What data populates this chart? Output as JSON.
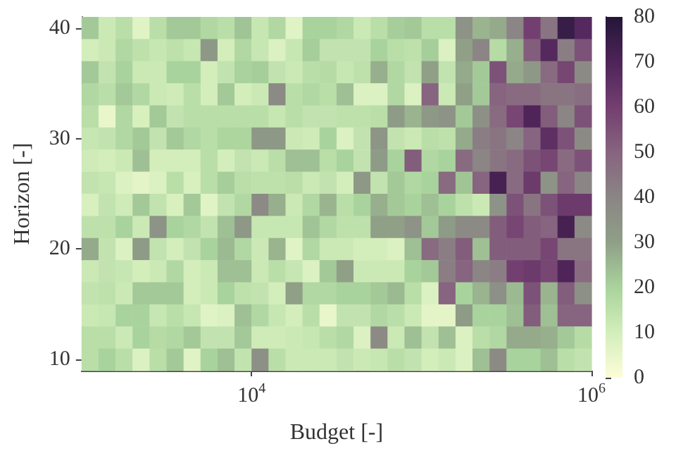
{
  "chart_data": {
    "type": "heatmap",
    "xlabel": "Budget [-]",
    "ylabel": "Horizon [-]",
    "log": "x",
    "xlim": [
      1000,
      1000000
    ],
    "xticks": [
      {
        "value": 10000,
        "label": "10$^{4}$"
      },
      {
        "value": 1000000,
        "label": "10$^{6}$"
      }
    ],
    "clim": [
      0,
      80
    ],
    "cticks": [
      0,
      10,
      20,
      30,
      40,
      50,
      60,
      70,
      80
    ],
    "x": [
      1122,
      1413,
      1778,
      2239,
      2818,
      3548,
      4467,
      5623,
      7079,
      8913,
      11220,
      14125,
      17783,
      22387,
      28184,
      35481,
      44668,
      56234,
      70795,
      89125,
      112202,
      141254,
      177828,
      223872,
      281838,
      354813,
      446684,
      562341,
      707946,
      891251
    ],
    "y_categories": [
      "40",
      null,
      null,
      null,
      null,
      "30",
      null,
      null,
      null,
      null,
      "20",
      null,
      null,
      null,
      null,
      "10"
    ],
    "cells": [
      [
        22,
        12,
        16,
        7,
        16,
        22,
        22,
        18,
        16,
        23,
        13,
        18,
        7,
        20,
        20,
        18,
        12,
        16,
        21,
        22,
        16,
        16,
        35,
        26,
        28,
        40,
        60,
        45,
        75,
        68
      ],
      [
        10,
        12,
        18,
        15,
        13,
        15,
        13,
        33,
        10,
        18,
        13,
        8,
        13,
        21,
        14,
        14,
        14,
        20,
        16,
        15,
        21,
        8,
        30,
        40,
        17,
        27,
        52,
        68,
        42,
        55
      ],
      [
        22,
        14,
        20,
        12,
        12,
        20,
        20,
        10,
        14,
        20,
        21,
        14,
        12,
        16,
        17,
        13,
        15,
        27,
        18,
        14,
        30,
        14,
        28,
        22,
        55,
        28,
        33,
        48,
        58,
        38
      ],
      [
        18,
        16,
        22,
        18,
        12,
        11,
        16,
        10,
        22,
        10,
        12,
        38,
        16,
        18,
        16,
        24,
        8,
        8,
        18,
        8,
        50,
        12,
        30,
        22,
        50,
        48,
        48,
        45,
        45,
        47
      ],
      [
        16,
        5,
        18,
        9,
        22,
        14,
        16,
        16,
        16,
        16,
        16,
        13,
        16,
        14,
        14,
        15,
        15,
        16,
        32,
        26,
        33,
        35,
        22,
        36,
        48,
        58,
        70,
        52,
        40,
        55
      ],
      [
        13,
        14,
        18,
        22,
        14,
        22,
        18,
        16,
        19,
        19,
        33,
        33,
        12,
        11,
        20,
        8,
        14,
        34,
        14,
        12,
        16,
        15,
        28,
        42,
        45,
        40,
        50,
        66,
        55,
        38
      ],
      [
        11,
        10,
        12,
        24,
        10,
        10,
        10,
        16,
        10,
        14,
        12,
        16,
        24,
        24,
        16,
        20,
        14,
        32,
        20,
        52,
        18,
        20,
        48,
        40,
        45,
        48,
        55,
        58,
        48,
        55
      ],
      [
        14,
        13,
        8,
        6,
        8,
        16,
        9,
        16,
        21,
        16,
        15,
        15,
        16,
        12,
        14,
        10,
        33,
        14,
        22,
        18,
        20,
        48,
        23,
        50,
        72,
        48,
        62,
        35,
        50,
        40
      ],
      [
        9,
        14,
        11,
        22,
        14,
        9,
        22,
        7,
        14,
        18,
        38,
        27,
        12,
        18,
        26,
        16,
        20,
        27,
        22,
        20,
        24,
        20,
        15,
        12,
        35,
        55,
        45,
        55,
        62,
        62
      ],
      [
        15,
        15,
        20,
        12,
        35,
        20,
        18,
        14,
        24,
        33,
        13,
        13,
        13,
        23,
        18,
        15,
        15,
        30,
        30,
        35,
        22,
        32,
        38,
        38,
        52,
        58,
        52,
        50,
        72,
        38
      ],
      [
        28,
        14,
        8,
        32,
        14,
        10,
        14,
        20,
        25,
        18,
        12,
        26,
        7,
        18,
        12,
        12,
        10,
        10,
        8,
        24,
        48,
        42,
        52,
        24,
        52,
        52,
        52,
        58,
        45,
        45
      ],
      [
        12,
        14,
        13,
        10,
        12,
        18,
        10,
        12,
        24,
        24,
        12,
        16,
        13,
        8,
        22,
        30,
        12,
        12,
        12,
        20,
        22,
        42,
        50,
        40,
        42,
        60,
        62,
        58,
        70,
        48
      ],
      [
        14,
        15,
        12,
        22,
        22,
        22,
        10,
        12,
        20,
        15,
        14,
        10,
        30,
        18,
        18,
        20,
        20,
        22,
        25,
        16,
        8,
        50,
        20,
        26,
        36,
        25,
        55,
        26,
        52,
        36
      ],
      [
        12,
        13,
        20,
        20,
        13,
        16,
        13,
        7,
        8,
        24,
        18,
        13,
        10,
        16,
        5,
        14,
        14,
        18,
        16,
        12,
        6,
        6,
        32,
        20,
        20,
        24,
        52,
        24,
        50,
        50
      ],
      [
        16,
        16,
        12,
        20,
        17,
        18,
        22,
        14,
        14,
        22,
        11,
        11,
        12,
        13,
        16,
        18,
        8,
        38,
        12,
        24,
        14,
        24,
        8,
        16,
        18,
        28,
        28,
        27,
        22,
        17
      ],
      [
        16,
        20,
        16,
        8,
        16,
        22,
        7,
        20,
        24,
        14,
        36,
        16,
        12,
        12,
        12,
        14,
        12,
        13,
        16,
        14,
        10,
        12,
        8,
        24,
        38,
        20,
        20,
        24,
        16,
        14
      ]
    ]
  }
}
